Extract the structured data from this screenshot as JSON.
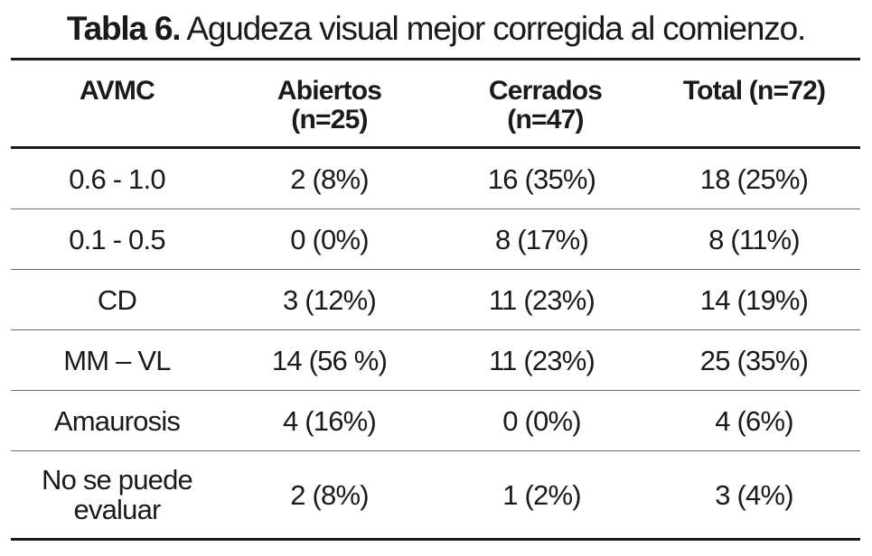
{
  "caption": {
    "label": "Tabla 6.",
    "text": " Agudeza visual mejor corregida al comienzo."
  },
  "table": {
    "headers": [
      [
        "AVMC"
      ],
      [
        "Abiertos",
        "(n=25)"
      ],
      [
        "Cerrados",
        "(n=47)"
      ],
      [
        "Total (n=72)"
      ]
    ],
    "rows": [
      {
        "label": [
          "0.6 - 1.0"
        ],
        "abiertos": "2 (8%)",
        "cerrados": "16 (35%)",
        "total": "18 (25%)"
      },
      {
        "label": [
          "0.1 - 0.5"
        ],
        "abiertos": "0 (0%)",
        "cerrados": "8 (17%)",
        "total": "8 (11%)"
      },
      {
        "label": [
          "CD"
        ],
        "abiertos": "3 (12%)",
        "cerrados": "11 (23%)",
        "total": "14 (19%)"
      },
      {
        "label": [
          "MM – VL"
        ],
        "abiertos": "14 (56 %)",
        "cerrados": "11 (23%)",
        "total": "25 (35%)"
      },
      {
        "label": [
          "Amaurosis"
        ],
        "abiertos": "4 (16%)",
        "cerrados": "0 (0%)",
        "total": "4 (6%)"
      },
      {
        "label": [
          "No se puede",
          "evaluar"
        ],
        "abiertos": "2 (8%)",
        "cerrados": "1 (2%)",
        "total": "3 (4%)"
      }
    ]
  }
}
